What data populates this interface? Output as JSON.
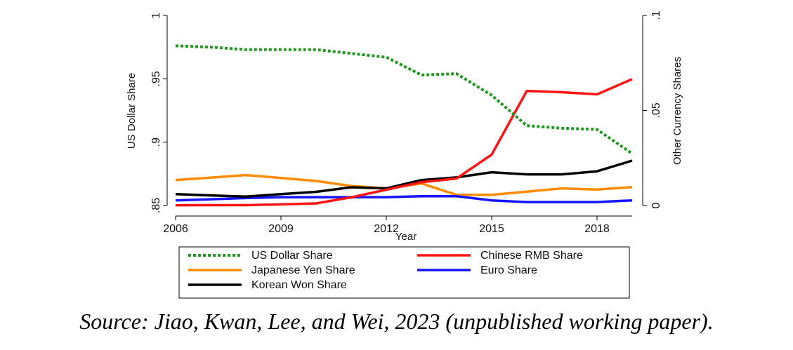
{
  "chart_data": {
    "type": "line",
    "xlabel": "Year",
    "ylabel_left": "US Dollar Share",
    "ylabel_right": "Other Currency Shares",
    "x_ticks": [
      "2006",
      "2009",
      "2012",
      "2015",
      "2018"
    ],
    "x_tick_values": [
      2006,
      2009,
      2012,
      2015,
      2018
    ],
    "xlim": [
      2006,
      2019
    ],
    "y_left": {
      "ticks": [
        ".85",
        ".9",
        ".95",
        "1"
      ],
      "tick_values": [
        0.85,
        0.9,
        0.95,
        1.0
      ],
      "ylim": [
        0.85,
        1.0
      ]
    },
    "y_right": {
      "ticks": [
        "0",
        ".05",
        ".1"
      ],
      "tick_values": [
        0,
        0.05,
        0.1
      ],
      "ylim": [
        0,
        0.1
      ]
    },
    "x": [
      2006,
      2007,
      2008,
      2009,
      2010,
      2011,
      2012,
      2013,
      2014,
      2015,
      2016,
      2017,
      2018,
      2019
    ],
    "series": [
      {
        "name": "US Dollar Share",
        "axis": "left",
        "color": "#1e9a1e",
        "style": "dotted",
        "values": [
          0.976,
          0.975,
          0.973,
          0.973,
          0.973,
          0.97,
          0.967,
          0.953,
          0.954,
          0.937,
          0.913,
          0.911,
          0.91,
          0.891
        ]
      },
      {
        "name": "Chinese RMB Share",
        "axis": "right",
        "color": "#ff1414",
        "style": "solid",
        "values": [
          0.0001,
          0.0002,
          0.0002,
          0.0006,
          0.0011,
          0.0043,
          0.0083,
          0.0123,
          0.0142,
          0.0268,
          0.0603,
          0.0596,
          0.0585,
          0.0665
        ]
      },
      {
        "name": "Japanese Yen Share",
        "axis": "right",
        "color": "#ff8c00",
        "style": "solid",
        "values": [
          0.0134,
          0.0147,
          0.016,
          0.0145,
          0.0129,
          0.0103,
          0.009,
          0.0116,
          0.0056,
          0.0056,
          0.0073,
          0.009,
          0.0084,
          0.0097
        ]
      },
      {
        "name": "Euro Share",
        "axis": "right",
        "color": "#1515ff",
        "style": "solid",
        "values": [
          0.0027,
          0.0033,
          0.0039,
          0.0044,
          0.0044,
          0.0044,
          0.0044,
          0.0049,
          0.0049,
          0.0027,
          0.0018,
          0.0018,
          0.0018,
          0.0027
        ]
      },
      {
        "name": "Korean Won Share",
        "axis": "right",
        "color": "#000000",
        "style": "solid",
        "values": [
          0.006,
          0.0053,
          0.0047,
          0.006,
          0.0072,
          0.0096,
          0.009,
          0.0134,
          0.0148,
          0.0175,
          0.0164,
          0.0164,
          0.018,
          0.0236
        ]
      }
    ],
    "legend": {
      "placement": "bottom",
      "entries": [
        "US Dollar Share",
        "Chinese RMB Share",
        "Japanese Yen Share",
        "Euro Share",
        "Korean Won Share"
      ]
    }
  },
  "caption": "Source: Jiao, Kwan, Lee, and Wei, 2023 (unpublished working paper)."
}
